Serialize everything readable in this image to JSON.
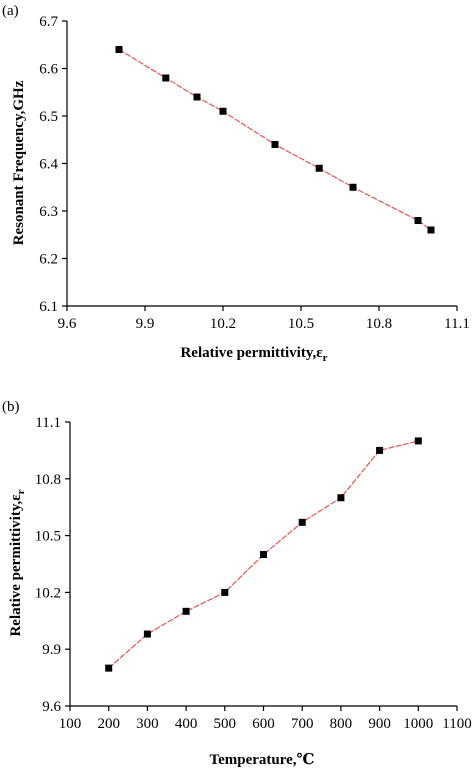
{
  "chart_data": [
    {
      "type": "line",
      "panel_label": "(a)",
      "xlabel": "Relative permittivity,ε",
      "xlabel_sub": "r",
      "ylabel": "Resonant Frequency,GHz",
      "xlim": [
        9.6,
        11.1
      ],
      "ylim": [
        6.1,
        6.7
      ],
      "xticks": [
        "9.6",
        "9.9",
        "10.2",
        "10.5",
        "10.8",
        "11.1"
      ],
      "yticks": [
        "6.1",
        "6.2",
        "6.3",
        "6.4",
        "6.5",
        "6.6",
        "6.7"
      ],
      "x": [
        9.8,
        9.98,
        10.1,
        10.2,
        10.4,
        10.57,
        10.7,
        10.95,
        11.0
      ],
      "y": [
        6.64,
        6.58,
        6.54,
        6.51,
        6.44,
        6.39,
        6.35,
        6.28,
        6.26
      ],
      "line_color": "#e8473f",
      "marker_color": "#000000"
    },
    {
      "type": "line",
      "panel_label": "(b)",
      "xlabel": "Temperature,℃",
      "ylabel": "Relative permittivity,ε",
      "ylabel_sub": "r",
      "xlim": [
        100,
        1100
      ],
      "ylim": [
        9.6,
        11.1
      ],
      "xticks": [
        "100",
        "200",
        "300",
        "400",
        "500",
        "600",
        "700",
        "800",
        "900",
        "1000",
        "1100"
      ],
      "yticks": [
        "9.6",
        "9.9",
        "10.2",
        "10.5",
        "10.8",
        "11.1"
      ],
      "x": [
        200,
        300,
        400,
        500,
        600,
        700,
        800,
        900,
        1000
      ],
      "y": [
        9.8,
        9.98,
        10.1,
        10.2,
        10.4,
        10.57,
        10.7,
        10.95,
        11.0
      ],
      "line_color": "#e8473f",
      "marker_color": "#000000"
    }
  ]
}
